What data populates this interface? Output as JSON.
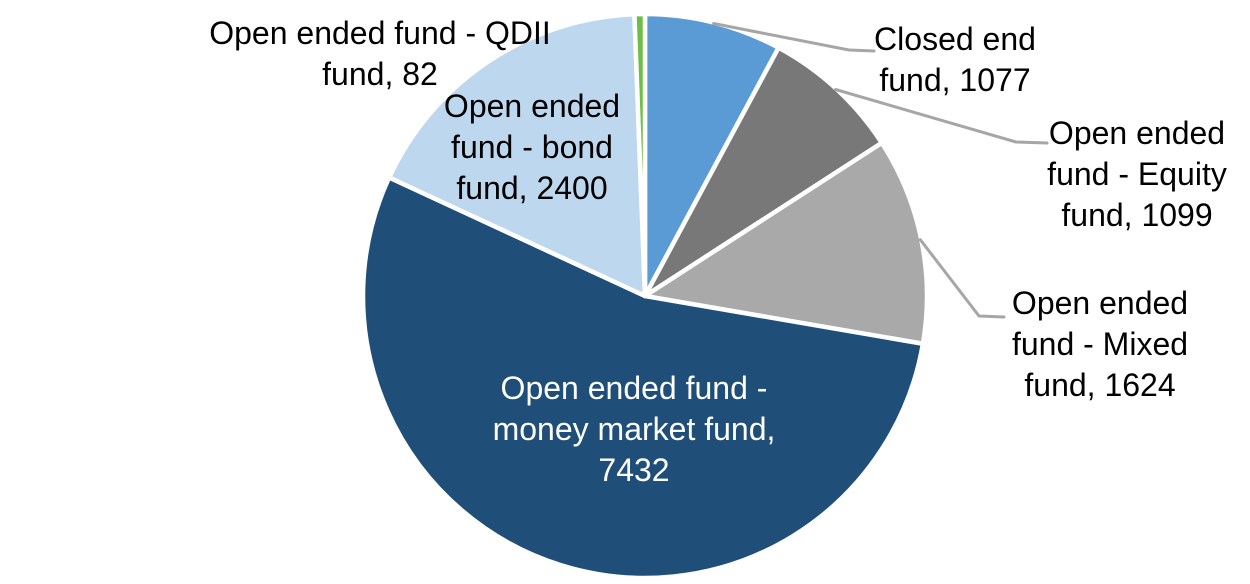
{
  "chart_data": {
    "type": "pie",
    "title": "",
    "total": 13714,
    "background_color": "#FFFFFF",
    "slice_border_color": "#FFFFFF",
    "leader_line_color": "#A6A6A6",
    "start_angle_deg": 0,
    "direction": "clockwise",
    "legend": "none",
    "series": [
      {
        "id": "closed_end",
        "name": "Closed end fund",
        "value": 1077,
        "color": "#5B9BD5",
        "label_lines": [
          "Closed end",
          "fund, 1077"
        ],
        "label_text": "Closed end fund, 1077",
        "label_color": "#000000",
        "label_position": "outside",
        "leader_line": true
      },
      {
        "id": "equity",
        "name": "Open ended fund - Equity fund",
        "value": 1099,
        "color": "#787878",
        "label_lines": [
          "Open ended",
          "fund - Equity",
          "fund, 1099"
        ],
        "label_text": "Open ended fund - Equity fund, 1099",
        "label_color": "#000000",
        "label_position": "outside",
        "leader_line": true
      },
      {
        "id": "mixed",
        "name": "Open ended fund - Mixed fund",
        "value": 1624,
        "color": "#A9A9A9",
        "label_lines": [
          "Open ended",
          "fund - Mixed",
          "fund, 1624"
        ],
        "label_text": "Open ended fund - Mixed fund, 1624",
        "label_color": "#000000",
        "label_position": "outside",
        "leader_line": true
      },
      {
        "id": "money_market",
        "name": "Open ended fund - money market fund",
        "value": 7432,
        "color": "#1F4E79",
        "label_lines": [
          "Open ended fund -",
          "money market fund,",
          "7432"
        ],
        "label_text": "Open ended fund - money market fund, 7432",
        "label_color": "#FFFFFF",
        "label_position": "inside",
        "leader_line": false
      },
      {
        "id": "bond",
        "name": "Open ended fund - bond fund",
        "value": 2400,
        "color": "#BDD7EE",
        "label_lines": [
          "Open ended",
          "fund - bond",
          "fund, 2400"
        ],
        "label_text": "Open ended fund - bond fund, 2400",
        "label_color": "#000000",
        "label_position": "inside",
        "leader_line": false
      },
      {
        "id": "qdii",
        "name": "Open ended fund - QDII fund",
        "value": 82,
        "color": "#6DBE45",
        "label_lines": [
          "Open ended fund - QDII",
          "fund, 82"
        ],
        "label_text": "Open ended fund - QDII fund, 82",
        "label_color": "#000000",
        "label_position": "outside",
        "leader_line": false
      }
    ]
  }
}
